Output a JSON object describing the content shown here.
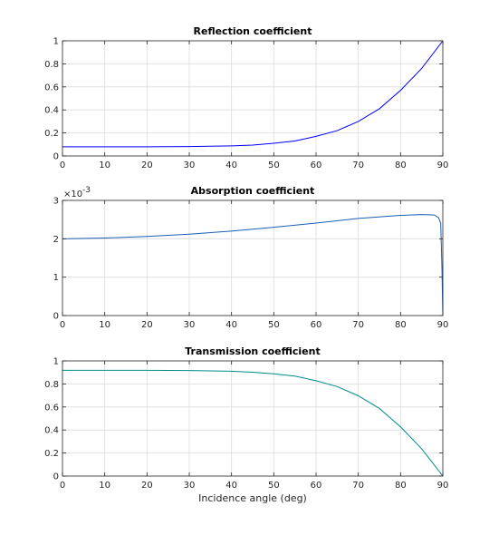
{
  "chart_data": [
    {
      "type": "line",
      "title": "Reflection coefficient",
      "xlabel": "",
      "ylabel": "",
      "xlim": [
        0,
        90
      ],
      "ylim": [
        0,
        1
      ],
      "xticks": [
        "0",
        "10",
        "20",
        "30",
        "40",
        "50",
        "60",
        "70",
        "80",
        "90"
      ],
      "yticks": [
        "0",
        "0.2",
        "0.4",
        "0.6",
        "0.8",
        "1"
      ],
      "grid": true,
      "series": [
        {
          "color": "#0000ff",
          "x": [
            0,
            10,
            20,
            30,
            40,
            45,
            50,
            55,
            60,
            65,
            70,
            75,
            80,
            85,
            90
          ],
          "y": [
            0.08,
            0.08,
            0.08,
            0.082,
            0.088,
            0.095,
            0.11,
            0.13,
            0.17,
            0.22,
            0.3,
            0.41,
            0.57,
            0.76,
            1.0
          ]
        }
      ]
    },
    {
      "type": "line",
      "title": "Absorption coefficient",
      "xlabel": "",
      "ylabel": "",
      "xlim": [
        0,
        90
      ],
      "ylim": [
        0,
        3
      ],
      "y_multiplier": "×10",
      "y_exponent": "-3",
      "xticks": [
        "0",
        "10",
        "20",
        "30",
        "40",
        "50",
        "60",
        "70",
        "80",
        "90"
      ],
      "yticks": [
        "0",
        "1",
        "2",
        "3"
      ],
      "grid": true,
      "series": [
        {
          "color": "#1a5fb4",
          "x": [
            0,
            10,
            20,
            30,
            40,
            50,
            60,
            70,
            80,
            85,
            88,
            89,
            89.5,
            89.8,
            90
          ],
          "y": [
            2.0,
            2.02,
            2.06,
            2.12,
            2.2,
            2.3,
            2.41,
            2.53,
            2.61,
            2.63,
            2.62,
            2.55,
            2.4,
            1.2,
            0.0
          ]
        }
      ]
    },
    {
      "type": "line",
      "title": "Transmission coefficient",
      "xlabel": "Incidence angle (deg)",
      "ylabel": "",
      "xlim": [
        0,
        90
      ],
      "ylim": [
        0,
        1
      ],
      "xticks": [
        "0",
        "10",
        "20",
        "30",
        "40",
        "50",
        "60",
        "70",
        "80",
        "90"
      ],
      "yticks": [
        "0",
        "0.2",
        "0.4",
        "0.6",
        "0.8",
        "1"
      ],
      "grid": true,
      "series": [
        {
          "color": "#008b8b",
          "x": [
            0,
            10,
            20,
            30,
            40,
            45,
            50,
            55,
            60,
            65,
            70,
            75,
            80,
            85,
            90
          ],
          "y": [
            0.918,
            0.918,
            0.918,
            0.916,
            0.91,
            0.902,
            0.888,
            0.868,
            0.828,
            0.777,
            0.697,
            0.587,
            0.427,
            0.237,
            0.0
          ]
        }
      ]
    }
  ]
}
